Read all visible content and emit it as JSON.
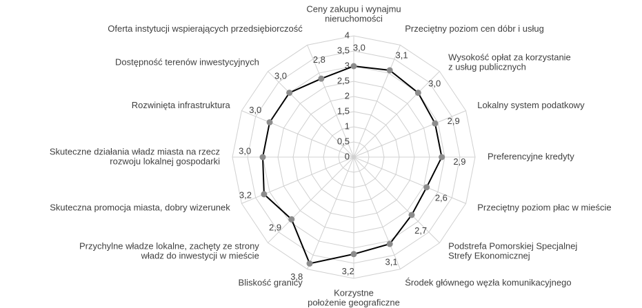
{
  "chart_data": {
    "type": "radar",
    "categories": [
      [
        "Ceny zakupu i wynajmu",
        "nieruchomości"
      ],
      [
        "Przeciętny poziom cen dóbr i usług"
      ],
      [
        "Wysokość opłat za korzystanie",
        "z usług publicznych"
      ],
      [
        "Lokalny system podatkowy"
      ],
      [
        "Preferencyjne kredyty"
      ],
      [
        "Przeciętny poziom płac w mieście"
      ],
      [
        "Podstrefa Pomorskiej Specjalnej",
        "Strefy Ekonomicznej"
      ],
      [
        "Środek głównego węzła komunikacyjnego"
      ],
      [
        "Korzystne",
        "położenie geograficzne"
      ],
      [
        "Bliskość granicy"
      ],
      [
        "Przychylne władze lokalne, zachęty ze strony",
        "władz do inwestycji w mieście"
      ],
      [
        "Skuteczna promocja miasta, dobry wizerunek"
      ],
      [
        "Skuteczne działania władz miasta na rzecz",
        "rozwoju lokalnej gospodarki"
      ],
      [
        "Rozwinięta infrastruktura"
      ],
      [
        "Dostępność terenów inwestycyjnych"
      ],
      [
        "Oferta instytucji wspierających przedsiębiorczość"
      ]
    ],
    "values": [
      3.0,
      3.1,
      3.0,
      2.9,
      2.9,
      2.6,
      2.7,
      3.1,
      3.2,
      3.8,
      2.9,
      3.2,
      3.0,
      3.0,
      3.0,
      2.8
    ],
    "value_labels": [
      "3,0",
      "3,1",
      "3,0",
      "2,9",
      "2,9",
      "2,6",
      "2,7",
      "3,1",
      "3,2",
      "3,8",
      "2,9",
      "3,2",
      "3,0",
      "3,0",
      "3,0",
      "2,8"
    ],
    "line_color": "#000000",
    "marker_color": "#8c8c8c",
    "ylim": [
      0,
      4
    ],
    "yticks": [
      0,
      {
        "value": 0.5,
        "label": "0,5"
      },
      1,
      {
        "value": 1.5,
        "label": "1,5"
      },
      2,
      {
        "value": 2.5,
        "label": "2,5"
      },
      3,
      {
        "value": 3.5,
        "label": "3,5"
      },
      4
    ],
    "grid": true
  }
}
